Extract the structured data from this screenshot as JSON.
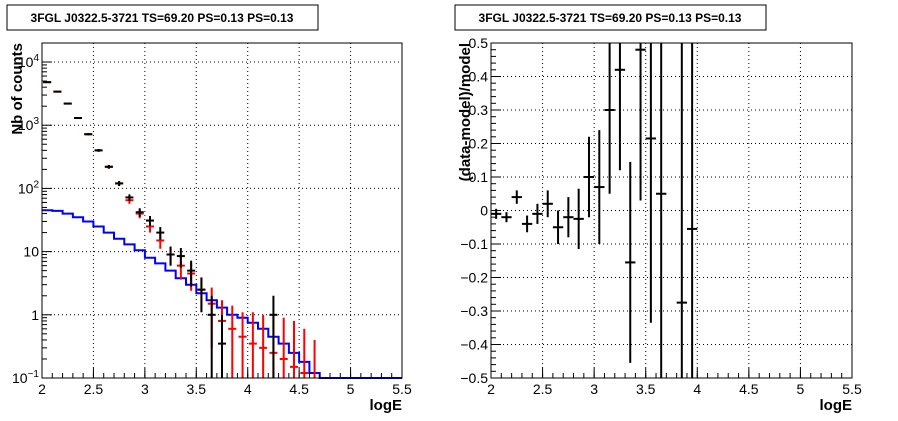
{
  "colors": {
    "data": "#000000",
    "model": "#ff0000",
    "source": "#0000ff",
    "grid": "#000000"
  },
  "chart_data": [
    {
      "type": "line",
      "title": "3FGL J0322.5-3721 TS=69.20 PS=0.13 PS=0.13",
      "xlabel": "logE",
      "ylabel": "Nb of counts",
      "xlim": [
        2,
        5.5
      ],
      "ylim": [
        0.1,
        20000
      ],
      "yscale": "log",
      "grid": true,
      "x_ticks": [
        "2",
        "2.5",
        "3",
        "3.5",
        "4",
        "4.5",
        "5",
        "5.5"
      ],
      "y_ticks": [
        "10^-1",
        "1",
        "10",
        "10^2",
        "10^3",
        "10^4"
      ],
      "bin_edges": [
        2.0,
        2.1,
        2.2,
        2.3,
        2.4,
        2.5,
        2.6,
        2.7,
        2.8,
        2.9,
        3.0,
        3.1,
        3.2,
        3.3,
        3.4,
        3.5,
        3.6,
        3.7,
        3.8,
        3.9,
        4.0,
        4.1,
        4.2,
        4.3,
        4.4,
        4.5,
        4.6,
        4.7,
        4.8,
        4.9,
        5.0,
        5.1,
        5.2,
        5.3,
        5.4,
        5.5
      ],
      "series": [
        {
          "kind": "points",
          "color": "#000000",
          "x": [
            2.05,
            2.15,
            2.25,
            2.35,
            2.45,
            2.55,
            2.65,
            2.75,
            2.85,
            2.95,
            3.05,
            3.15,
            3.25,
            3.35,
            3.45,
            3.55,
            3.65,
            3.75,
            3.85,
            3.95,
            4.05,
            4.15,
            4.25,
            4.35,
            4.45,
            4.55,
            4.65
          ],
          "y": [
            4800,
            3400,
            2200,
            1300,
            720,
            400,
            220,
            120,
            72,
            42,
            31,
            20,
            9,
            8.5,
            5,
            2.5,
            1,
            0.35,
            0.1,
            0.1,
            0.1,
            0.1,
            1,
            0.1,
            0.1,
            0.1,
            0.1
          ],
          "y_low": [
            4731,
            3342,
            2153,
            1264,
            693,
            380,
            205,
            109,
            63.5,
            35.5,
            25.4,
            15.5,
            6.0,
            5.6,
            2.8,
            1.1,
            0.1,
            0.1,
            0.1,
            0.1,
            0.1,
            0.1,
            0.1,
            0.1,
            0.1,
            0.1,
            0.1
          ],
          "y_high": [
            4870,
            3460,
            2250,
            1340,
            750,
            420,
            235,
            131,
            80.5,
            48.5,
            36.6,
            24.5,
            12.0,
            11.4,
            7.2,
            3.9,
            2.0,
            1.0,
            0.1,
            0.1,
            0.1,
            0.1,
            2.0,
            0.1,
            0.1,
            0.1,
            0.1
          ]
        },
        {
          "kind": "points",
          "color": "#ff0000",
          "x": [
            2.05,
            2.15,
            2.25,
            2.35,
            2.45,
            2.55,
            2.65,
            2.75,
            2.85,
            2.95,
            3.05,
            3.15,
            3.25,
            3.35,
            3.45,
            3.55,
            3.65,
            3.75,
            3.85,
            3.95,
            4.05,
            4.15,
            4.25,
            4.35,
            4.45,
            4.55,
            4.65
          ],
          "y": [
            4800,
            3400,
            2200,
            1300,
            720,
            400,
            220,
            120,
            65,
            40,
            25,
            15,
            9,
            6,
            4.5,
            2.5,
            1.5,
            0.8,
            0.6,
            0.45,
            0.35,
            0.3,
            0.25,
            0.2,
            0.15,
            0.12,
            0.1
          ],
          "y_low": [
            4731,
            3342,
            2153,
            1264,
            693,
            380,
            205,
            109,
            57,
            33.7,
            20,
            11.1,
            6,
            3.6,
            2.4,
            1.1,
            0.3,
            0.1,
            0.1,
            0.1,
            0.1,
            0.1,
            0.1,
            0.1,
            0.1,
            0.1,
            0.1
          ],
          "y_high": [
            4870,
            3460,
            2250,
            1340,
            750,
            420,
            235,
            131,
            73,
            46.3,
            30,
            18.9,
            12,
            8.4,
            6.6,
            3.9,
            2.7,
            1.7,
            1.4,
            1.1,
            1.1,
            1.0,
            1.0,
            0.9,
            0.8,
            0.6,
            0.4
          ]
        },
        {
          "kind": "step",
          "color": "#0000ff",
          "values": [
            45,
            44,
            40,
            35,
            30,
            25,
            20,
            16,
            13,
            10.5,
            8,
            6.5,
            5,
            3.8,
            3,
            2.2,
            1.7,
            1.3,
            1,
            0.9,
            0.75,
            0.6,
            0.45,
            0.35,
            0.25,
            0.18,
            0.12,
            0.1,
            0.1,
            0.1,
            0.1,
            0.1,
            0.1,
            0.1,
            0.1
          ]
        }
      ]
    },
    {
      "type": "scatter",
      "title": "3FGL J0322.5-3721 TS=69.20 PS=0.13 PS=0.13",
      "xlabel": "logE",
      "ylabel": "(data-model)/model",
      "xlim": [
        2,
        5.5
      ],
      "ylim": [
        -0.5,
        0.5
      ],
      "grid": true,
      "x_ticks": [
        "2",
        "2.5",
        "3",
        "3.5",
        "4",
        "4.5",
        "5",
        "5.5"
      ],
      "y_ticks": [
        "−0.5",
        "−0.4",
        "−0.3",
        "−0.2",
        "−0.1",
        "0",
        "0.1",
        "0.2",
        "0.3",
        "0.4",
        "0.5"
      ],
      "series": [
        {
          "color": "#000000",
          "x": [
            2.05,
            2.15,
            2.25,
            2.35,
            2.45,
            2.55,
            2.65,
            2.75,
            2.85,
            2.95,
            3.05,
            3.15,
            3.25,
            3.35,
            3.45,
            3.55,
            3.65,
            3.85,
            3.95
          ],
          "y": [
            -0.01,
            -0.02,
            0.04,
            -0.04,
            -0.01,
            0.02,
            -0.05,
            -0.02,
            -0.025,
            0.1,
            0.07,
            0.3,
            0.42,
            -0.155,
            0.48,
            0.215,
            0.05,
            -0.275,
            -0.055
          ],
          "err": [
            0.015,
            0.015,
            0.02,
            0.025,
            0.03,
            0.04,
            0.05,
            0.06,
            0.09,
            0.12,
            0.17,
            0.25,
            0.3,
            0.3,
            0.45,
            0.55,
            0.6,
            0.8,
            0.9
          ],
          "xerr": [
            0.05,
            0.05,
            0.05,
            0.05,
            0.05,
            0.05,
            0.05,
            0.05,
            0.05,
            0.05,
            0.05,
            0.05,
            0.05,
            0.05,
            0.05,
            0.05,
            0.05,
            0.05,
            0.05
          ]
        }
      ]
    }
  ]
}
